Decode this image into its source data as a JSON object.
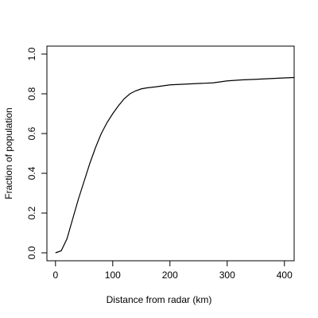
{
  "chart_data": {
    "type": "line",
    "x_label": "Distance from radar (km)",
    "y_label": "Fraction of population",
    "x": [
      0,
      10,
      20,
      30,
      40,
      50,
      60,
      70,
      80,
      90,
      100,
      110,
      120,
      130,
      140,
      150,
      160,
      175,
      200,
      250,
      275,
      300,
      325,
      350,
      400,
      417
    ],
    "series": [
      {
        "color": "#000000",
        "values": [
          0,
          0.01,
          0.07,
          0.17,
          0.27,
          0.36,
          0.45,
          0.53,
          0.6,
          0.655,
          0.7,
          0.74,
          0.775,
          0.8,
          0.815,
          0.825,
          0.83,
          0.835,
          0.845,
          0.852,
          0.855,
          0.865,
          0.87,
          0.873,
          0.88,
          0.882
        ]
      }
    ],
    "xlim": [
      -15,
      417
    ],
    "ylim": [
      -0.04,
      1.04
    ],
    "xticks": [
      0,
      100,
      200,
      300,
      400
    ],
    "yticks": [
      {
        "value": 0,
        "label": "0.0"
      },
      0.2,
      0.4,
      0.6,
      0.8,
      {
        "value": 1,
        "label": "1.0"
      }
    ],
    "grid": false
  }
}
